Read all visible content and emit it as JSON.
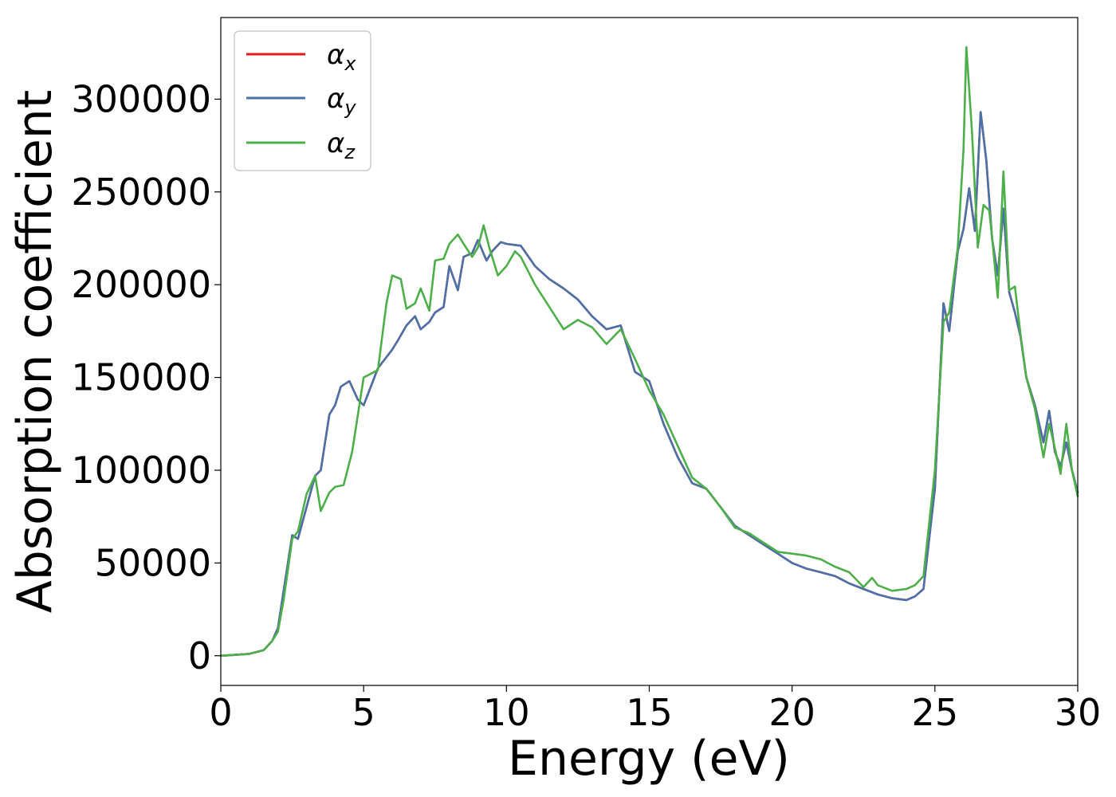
{
  "chart_data": {
    "type": "line",
    "xlabel": "Energy (eV)",
    "ylabel": "Absorption coefficient",
    "xlim": [
      0,
      30
    ],
    "ylim": [
      -16000,
      344000
    ],
    "xticks": [
      0,
      5,
      10,
      15,
      20,
      25,
      30
    ],
    "xtick_labels": [
      "0",
      "5",
      "10",
      "15",
      "20",
      "25",
      "30"
    ],
    "yticks": [
      0,
      50000,
      100000,
      150000,
      200000,
      250000,
      300000
    ],
    "ytick_labels": [
      "0",
      "50000",
      "100000",
      "150000",
      "200000",
      "250000",
      "300000"
    ],
    "grid": false,
    "legend": "top-left",
    "series": [
      {
        "name": "α",
        "subscript": "x",
        "color": "#e41a1c",
        "x": [
          0,
          1,
          1.5,
          1.8,
          2.0,
          2.2,
          2.5,
          2.7,
          3.0,
          3.3,
          3.5,
          3.8,
          4.0,
          4.2,
          4.5,
          4.8,
          5.0,
          5.5,
          6.0,
          6.2,
          6.5,
          6.8,
          7.0,
          7.3,
          7.5,
          7.8,
          8.0,
          8.3,
          8.5,
          8.8,
          9.0,
          9.3,
          9.5,
          9.8,
          10.0,
          10.5,
          11.0,
          11.5,
          12.0,
          12.5,
          13.0,
          13.5,
          14.0,
          14.5,
          15.0,
          15.5,
          16.0,
          16.5,
          17.0,
          17.5,
          18.0,
          18.5,
          19.0,
          19.5,
          20.0,
          20.5,
          21.0,
          21.5,
          22.0,
          22.5,
          23.0,
          23.5,
          24.0,
          24.3,
          24.6,
          25.0,
          25.3,
          25.5,
          25.8,
          26.0,
          26.2,
          26.4,
          26.6,
          26.8,
          27.0,
          27.2,
          27.4,
          27.6,
          27.8,
          28.0,
          28.2,
          28.5,
          28.8,
          29.0,
          29.2,
          29.4,
          29.6,
          29.8,
          30.0
        ],
        "values": [
          0,
          1000,
          3000,
          8000,
          15000,
          35000,
          65000,
          63000,
          80000,
          97000,
          100000,
          130000,
          135000,
          145000,
          148000,
          138000,
          135000,
          155000,
          165000,
          170000,
          178000,
          183000,
          176000,
          180000,
          185000,
          188000,
          210000,
          197000,
          215000,
          217000,
          224000,
          213000,
          218000,
          223000,
          222000,
          221000,
          210000,
          203000,
          198000,
          192000,
          183000,
          176000,
          178000,
          153000,
          148000,
          125000,
          107000,
          93000,
          90000,
          80000,
          70000,
          65000,
          60000,
          55000,
          50000,
          47000,
          45000,
          43000,
          39000,
          36000,
          33000,
          31000,
          30000,
          32000,
          36000,
          90000,
          190000,
          175000,
          218000,
          230000,
          252000,
          229000,
          293000,
          267000,
          225000,
          205000,
          241000,
          196000,
          185000,
          172000,
          150000,
          135000,
          115000,
          132000,
          110000,
          102000,
          115000,
          100000,
          88000
        ]
      },
      {
        "name": "α",
        "subscript": "y",
        "color": "#4a72a8",
        "x": [
          0,
          1,
          1.5,
          1.8,
          2.0,
          2.2,
          2.5,
          2.7,
          3.0,
          3.3,
          3.5,
          3.8,
          4.0,
          4.2,
          4.5,
          4.8,
          5.0,
          5.5,
          6.0,
          6.2,
          6.5,
          6.8,
          7.0,
          7.3,
          7.5,
          7.8,
          8.0,
          8.3,
          8.5,
          8.8,
          9.0,
          9.3,
          9.5,
          9.8,
          10.0,
          10.5,
          11.0,
          11.5,
          12.0,
          12.5,
          13.0,
          13.5,
          14.0,
          14.5,
          15.0,
          15.5,
          16.0,
          16.5,
          17.0,
          17.5,
          18.0,
          18.5,
          19.0,
          19.5,
          20.0,
          20.5,
          21.0,
          21.5,
          22.0,
          22.5,
          23.0,
          23.5,
          24.0,
          24.3,
          24.6,
          25.0,
          25.3,
          25.5,
          25.8,
          26.0,
          26.2,
          26.4,
          26.6,
          26.8,
          27.0,
          27.2,
          27.4,
          27.6,
          27.8,
          28.0,
          28.2,
          28.5,
          28.8,
          29.0,
          29.2,
          29.4,
          29.6,
          29.8,
          30.0
        ],
        "values": [
          0,
          1000,
          3000,
          8000,
          15000,
          35000,
          65000,
          63000,
          80000,
          97000,
          100000,
          130000,
          135000,
          145000,
          148000,
          138000,
          135000,
          155000,
          165000,
          170000,
          178000,
          183000,
          176000,
          180000,
          185000,
          188000,
          210000,
          197000,
          215000,
          217000,
          224000,
          213000,
          218000,
          223000,
          222000,
          221000,
          210000,
          203000,
          198000,
          192000,
          183000,
          176000,
          178000,
          153000,
          148000,
          125000,
          107000,
          93000,
          90000,
          80000,
          70000,
          65000,
          60000,
          55000,
          50000,
          47000,
          45000,
          43000,
          39000,
          36000,
          33000,
          31000,
          30000,
          32000,
          36000,
          90000,
          190000,
          175000,
          218000,
          230000,
          252000,
          229000,
          293000,
          267000,
          225000,
          205000,
          241000,
          196000,
          185000,
          172000,
          150000,
          135000,
          115000,
          132000,
          110000,
          102000,
          115000,
          100000,
          88000
        ]
      },
      {
        "name": "α",
        "subscript": "z",
        "color": "#4daf4a",
        "x": [
          0,
          1,
          1.5,
          1.8,
          2.0,
          2.2,
          2.5,
          2.7,
          3.0,
          3.3,
          3.5,
          3.8,
          4.0,
          4.3,
          4.6,
          5.0,
          5.5,
          5.8,
          6.0,
          6.3,
          6.5,
          6.8,
          7.0,
          7.3,
          7.5,
          7.8,
          8.0,
          8.3,
          8.5,
          8.8,
          9.0,
          9.2,
          9.4,
          9.7,
          10.0,
          10.3,
          10.5,
          11.0,
          11.5,
          12.0,
          12.5,
          13.0,
          13.5,
          14.0,
          14.5,
          15.0,
          15.5,
          16.0,
          16.5,
          17.0,
          17.5,
          18.0,
          18.5,
          19.0,
          19.5,
          20.0,
          20.5,
          21.0,
          21.5,
          22.0,
          22.5,
          22.8,
          23.0,
          23.5,
          24.0,
          24.3,
          24.6,
          25.0,
          25.3,
          25.5,
          25.8,
          26.0,
          26.1,
          26.3,
          26.5,
          26.7,
          26.9,
          27.0,
          27.2,
          27.4,
          27.6,
          27.8,
          28.0,
          28.2,
          28.5,
          28.8,
          29.0,
          29.2,
          29.4,
          29.6,
          29.8,
          30.0
        ],
        "values": [
          0,
          1000,
          3000,
          8000,
          13000,
          30000,
          63000,
          67000,
          87000,
          97000,
          78000,
          88000,
          91000,
          92000,
          110000,
          150000,
          154000,
          190000,
          205000,
          203000,
          187000,
          190000,
          198000,
          186000,
          213000,
          214000,
          222000,
          227000,
          222000,
          215000,
          220000,
          232000,
          220000,
          205000,
          210000,
          218000,
          215000,
          200000,
          188000,
          176000,
          181000,
          177000,
          168000,
          176000,
          160000,
          143000,
          130000,
          113000,
          96000,
          90000,
          80000,
          69000,
          66000,
          61000,
          56000,
          55000,
          54000,
          52000,
          48000,
          45000,
          37000,
          42000,
          38000,
          35000,
          36000,
          38000,
          43000,
          100000,
          180000,
          185000,
          220000,
          273000,
          328000,
          282000,
          220000,
          243000,
          240000,
          226000,
          193000,
          261000,
          197000,
          199000,
          173000,
          150000,
          133000,
          107000,
          125000,
          112000,
          98000,
          125000,
          100000,
          86000
        ]
      }
    ]
  }
}
